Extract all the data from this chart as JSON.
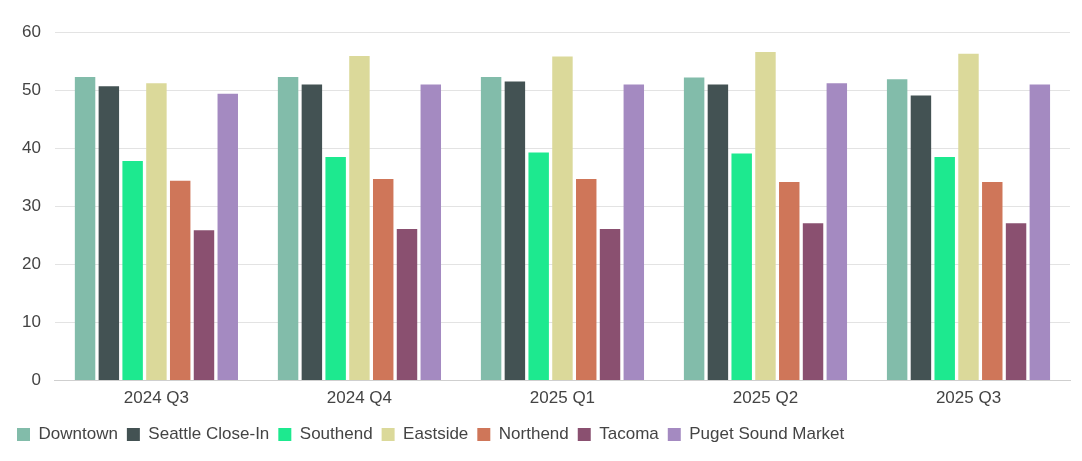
{
  "chart_data": {
    "type": "bar",
    "categories": [
      "2024 Q3",
      "2024 Q4",
      "2025 Q1",
      "2025 Q2",
      "2025 Q3"
    ],
    "series": [
      {
        "name": "Downtown",
        "color": "#82bcaa",
        "values": [
          52.3,
          52.3,
          52.3,
          52.2,
          51.9
        ]
      },
      {
        "name": "Seattle Close-In",
        "color": "#435253",
        "values": [
          50.7,
          51.0,
          51.5,
          51.0,
          49.1
        ]
      },
      {
        "name": "Southend",
        "color": "#1de98f",
        "values": [
          37.8,
          38.5,
          39.3,
          39.1,
          38.5
        ]
      },
      {
        "name": "Eastside",
        "color": "#dbd99a",
        "values": [
          51.2,
          55.9,
          55.8,
          56.6,
          56.3
        ]
      },
      {
        "name": "Northend",
        "color": "#cf7659",
        "values": [
          34.4,
          34.7,
          34.7,
          34.2,
          34.2
        ]
      },
      {
        "name": "Tacoma",
        "color": "#8a5070",
        "values": [
          25.9,
          26.1,
          26.1,
          27.1,
          27.1
        ]
      },
      {
        "name": "Puget Sound Market",
        "color": "#a48ac1",
        "values": [
          49.4,
          51.0,
          51.0,
          51.2,
          51.0
        ]
      }
    ],
    "ylim": [
      0,
      60
    ],
    "yticks": [
      0,
      10,
      20,
      30,
      40,
      50,
      60
    ],
    "grid": "y",
    "legend": "bottom"
  }
}
